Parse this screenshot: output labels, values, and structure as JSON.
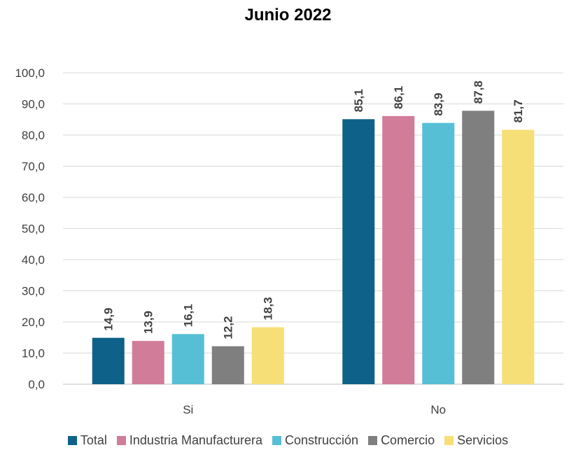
{
  "chart_data": {
    "type": "bar",
    "title": "Junio 2022",
    "categories": [
      "Si",
      "No"
    ],
    "series": [
      {
        "name": "Total",
        "color": "#0e6289",
        "values": [
          14.9,
          85.1
        ]
      },
      {
        "name": "Industria Manufacturera",
        "color": "#d17c98",
        "values": [
          13.9,
          86.1
        ]
      },
      {
        "name": "Construcción",
        "color": "#56bfd6",
        "values": [
          16.1,
          83.9
        ]
      },
      {
        "name": "Comercio",
        "color": "#7f7f7f",
        "values": [
          12.2,
          87.8
        ]
      },
      {
        "name": "Servicios",
        "color": "#f7df77",
        "values": [
          18.3,
          81.7
        ]
      }
    ],
    "ylim": [
      0,
      100
    ],
    "yticks": [
      "0,0",
      "10,0",
      "20,0",
      "30,0",
      "40,0",
      "50,0",
      "60,0",
      "70,0",
      "80,0",
      "90,0",
      "100,0"
    ],
    "data_labels": [
      [
        "14,9",
        "85,1"
      ],
      [
        "13,9",
        "86,1"
      ],
      [
        "16,1",
        "83,9"
      ],
      [
        "12,2",
        "87,8"
      ],
      [
        "18,3",
        "81,7"
      ]
    ],
    "grid": true,
    "legend_position": "bottom"
  }
}
